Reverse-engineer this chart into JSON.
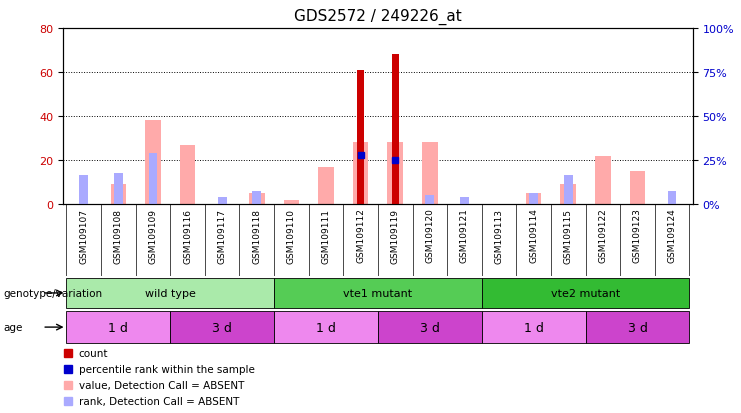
{
  "title": "GDS2572 / 249226_at",
  "samples": [
    "GSM109107",
    "GSM109108",
    "GSM109109",
    "GSM109116",
    "GSM109117",
    "GSM109118",
    "GSM109110",
    "GSM109111",
    "GSM109112",
    "GSM109119",
    "GSM109120",
    "GSM109121",
    "GSM109113",
    "GSM109114",
    "GSM109115",
    "GSM109122",
    "GSM109123",
    "GSM109124"
  ],
  "count": [
    0,
    0,
    0,
    0,
    0,
    0,
    0,
    0,
    61,
    68,
    0,
    0,
    0,
    0,
    0,
    0,
    0,
    0
  ],
  "percentile_rank": [
    0,
    0,
    0,
    0,
    0,
    0,
    0,
    0,
    28,
    25,
    0,
    0,
    0,
    0,
    0,
    0,
    0,
    0
  ],
  "value_absent": [
    0,
    9,
    38,
    27,
    0,
    5,
    2,
    17,
    28,
    28,
    28,
    0,
    0,
    5,
    9,
    22,
    15,
    0
  ],
  "rank_absent": [
    13,
    14,
    23,
    0,
    3,
    6,
    0,
    0,
    0,
    0,
    4,
    3,
    0,
    5,
    13,
    0,
    0,
    6
  ],
  "ylim_left": [
    0,
    80
  ],
  "ylim_right": [
    0,
    100
  ],
  "yticks_left": [
    0,
    20,
    40,
    60,
    80
  ],
  "yticks_right": [
    0,
    25,
    50,
    75,
    100
  ],
  "ylabel_left_color": "#cc0000",
  "ylabel_right_color": "#0000cc",
  "count_color": "#cc0000",
  "percentile_color": "#0000cc",
  "value_absent_color": "#ffaaaa",
  "rank_absent_color": "#aaaaff",
  "xtick_bg_color": "#b0b0b0",
  "genotype_groups": [
    {
      "label": "wild type",
      "start": 0,
      "end": 6,
      "color": "#aaeaaa"
    },
    {
      "label": "vte1 mutant",
      "start": 6,
      "end": 12,
      "color": "#55cc55"
    },
    {
      "label": "vte2 mutant",
      "start": 12,
      "end": 18,
      "color": "#33bb33"
    }
  ],
  "age_groups": [
    {
      "label": "1 d",
      "start": 0,
      "end": 3,
      "color": "#ee88ee"
    },
    {
      "label": "3 d",
      "start": 3,
      "end": 6,
      "color": "#cc44cc"
    },
    {
      "label": "1 d",
      "start": 6,
      "end": 9,
      "color": "#ee88ee"
    },
    {
      "label": "3 d",
      "start": 9,
      "end": 12,
      "color": "#cc44cc"
    },
    {
      "label": "1 d",
      "start": 12,
      "end": 15,
      "color": "#ee88ee"
    },
    {
      "label": "3 d",
      "start": 15,
      "end": 18,
      "color": "#cc44cc"
    }
  ],
  "genotype_label": "genotype/variation",
  "age_label": "age",
  "legend_items": [
    {
      "color": "#cc0000",
      "label": "count"
    },
    {
      "color": "#0000cc",
      "label": "percentile rank within the sample"
    },
    {
      "color": "#ffaaaa",
      "label": "value, Detection Call = ABSENT"
    },
    {
      "color": "#aaaaff",
      "label": "rank, Detection Call = ABSENT"
    }
  ]
}
